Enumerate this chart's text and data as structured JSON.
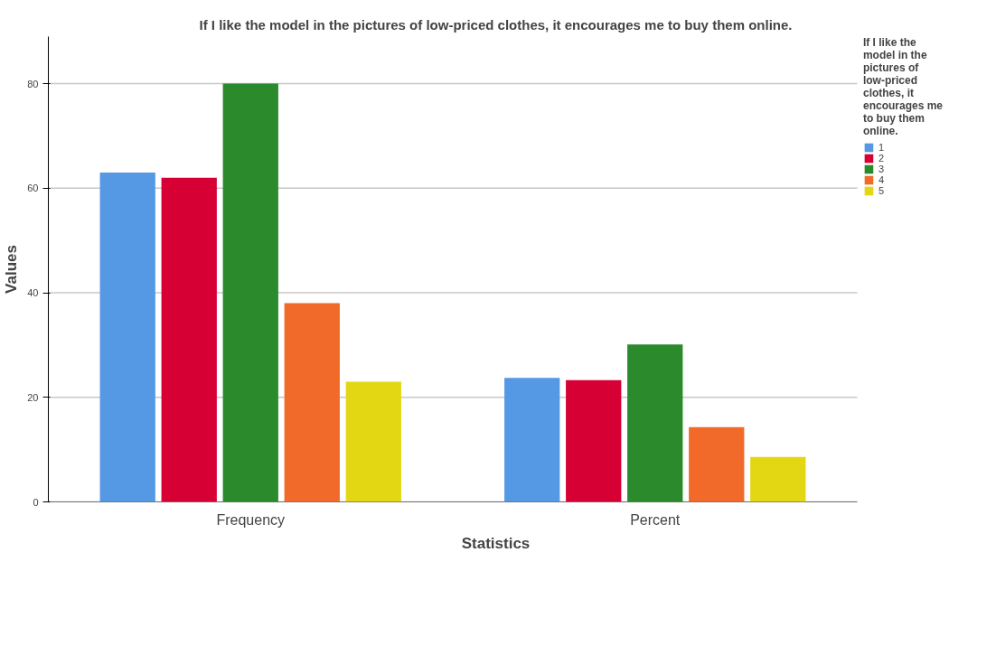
{
  "chart_data": {
    "type": "bar",
    "title": "If I like the model in the pictures of low-priced clothes, it encourages me to buy them online.",
    "xlabel": "Statistics",
    "ylabel": "Values",
    "legend_title": "If I like the model in the pictures of low-priced clothes, it encourages me to buy them online.",
    "categories": [
      "Frequency",
      "Percent"
    ],
    "series": [
      {
        "name": "1",
        "color": "#5599e5",
        "values": [
          63,
          23.7
        ]
      },
      {
        "name": "2",
        "color": "#d70035",
        "values": [
          62,
          23.3
        ]
      },
      {
        "name": "3",
        "color": "#2a8a2c",
        "values": [
          80,
          30.1
        ]
      },
      {
        "name": "4",
        "color": "#f26a2a",
        "values": [
          38,
          14.3
        ]
      },
      {
        "name": "5",
        "color": "#e3d713",
        "values": [
          23,
          8.6
        ]
      }
    ],
    "ylim": [
      0,
      89
    ],
    "yticks": [
      0,
      20,
      40,
      60,
      80
    ],
    "grid": "y",
    "legend": "top right"
  }
}
